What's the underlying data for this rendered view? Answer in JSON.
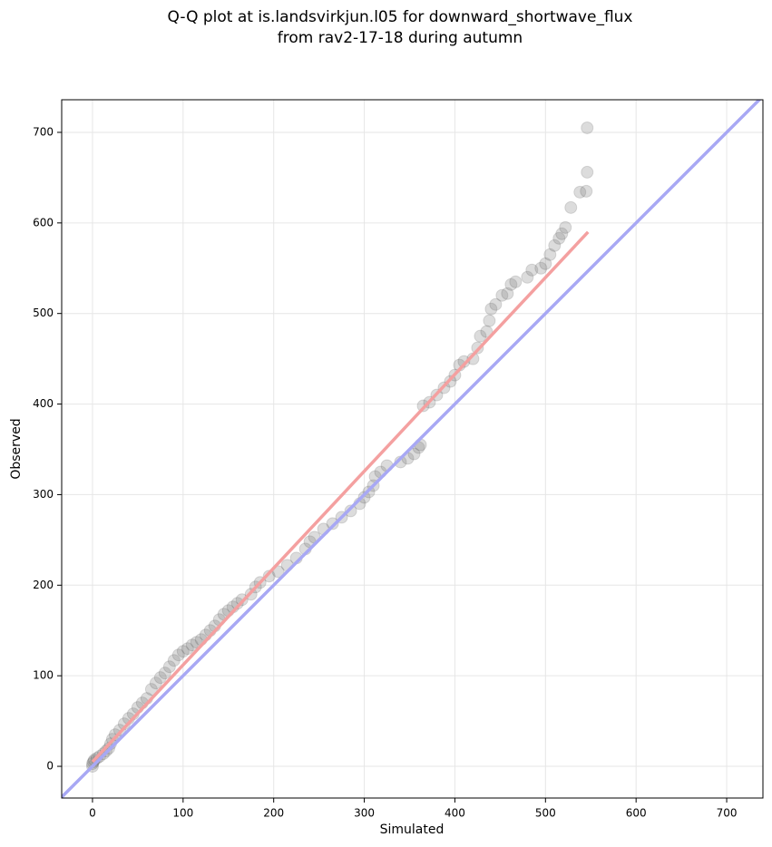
{
  "chart_data": {
    "type": "scatter",
    "title": [
      "Q-Q plot at is.landsvirkjun.l05 for downward_shortwave_flux",
      "from rav2-17-18 during autumn"
    ],
    "xlabel": "Simulated",
    "ylabel": "Observed",
    "xlim": [
      -34,
      740
    ],
    "ylim": [
      -35,
      736
    ],
    "xticks": [
      0,
      100,
      200,
      300,
      400,
      500,
      600,
      700
    ],
    "yticks": [
      0,
      100,
      200,
      300,
      400,
      500,
      600,
      700
    ],
    "grid": true,
    "color": "#808080",
    "x": [
      0,
      0,
      1,
      2,
      5,
      8,
      12,
      15,
      18,
      20,
      22,
      25,
      30,
      35,
      40,
      45,
      50,
      55,
      60,
      65,
      70,
      75,
      80,
      85,
      90,
      95,
      100,
      105,
      110,
      115,
      120,
      125,
      130,
      135,
      140,
      145,
      150,
      155,
      160,
      165,
      175,
      180,
      185,
      195,
      205,
      215,
      225,
      235,
      240,
      245,
      255,
      265,
      275,
      285,
      295,
      300,
      305,
      310,
      312,
      318,
      325,
      340,
      348,
      355,
      360,
      362,
      365,
      372,
      380,
      388,
      395,
      400,
      405,
      410,
      420,
      425,
      428,
      435,
      438,
      440,
      445,
      452,
      458,
      462,
      467,
      480,
      485,
      495,
      500,
      505,
      510,
      515,
      518,
      522,
      528,
      538,
      545,
      546,
      546
    ],
    "values": [
      0,
      3,
      5,
      7,
      9,
      11,
      14,
      17,
      20,
      25,
      30,
      35,
      40,
      47,
      53,
      58,
      65,
      70,
      75,
      85,
      92,
      98,
      103,
      110,
      117,
      123,
      127,
      130,
      134,
      137,
      140,
      145,
      150,
      155,
      162,
      168,
      172,
      176,
      180,
      184,
      190,
      198,
      203,
      210,
      215,
      222,
      230,
      240,
      248,
      253,
      262,
      268,
      275,
      282,
      290,
      297,
      303,
      310,
      320,
      325,
      332,
      336,
      340,
      345,
      352,
      355,
      398,
      402,
      410,
      418,
      425,
      432,
      443,
      447,
      450,
      462,
      475,
      480,
      492,
      505,
      510,
      520,
      522,
      532,
      535,
      540,
      548,
      550,
      555,
      565,
      575,
      583,
      588,
      595,
      617,
      634,
      635,
      656,
      705
    ],
    "lines": [
      {
        "x": [
          0,
          547
        ],
        "y": [
          5,
          590
        ],
        "color": "#f4a0a0"
      },
      {
        "x": [
          -35,
          740
        ],
        "y": [
          -35,
          740
        ],
        "color": "#a8a8f4"
      }
    ]
  }
}
